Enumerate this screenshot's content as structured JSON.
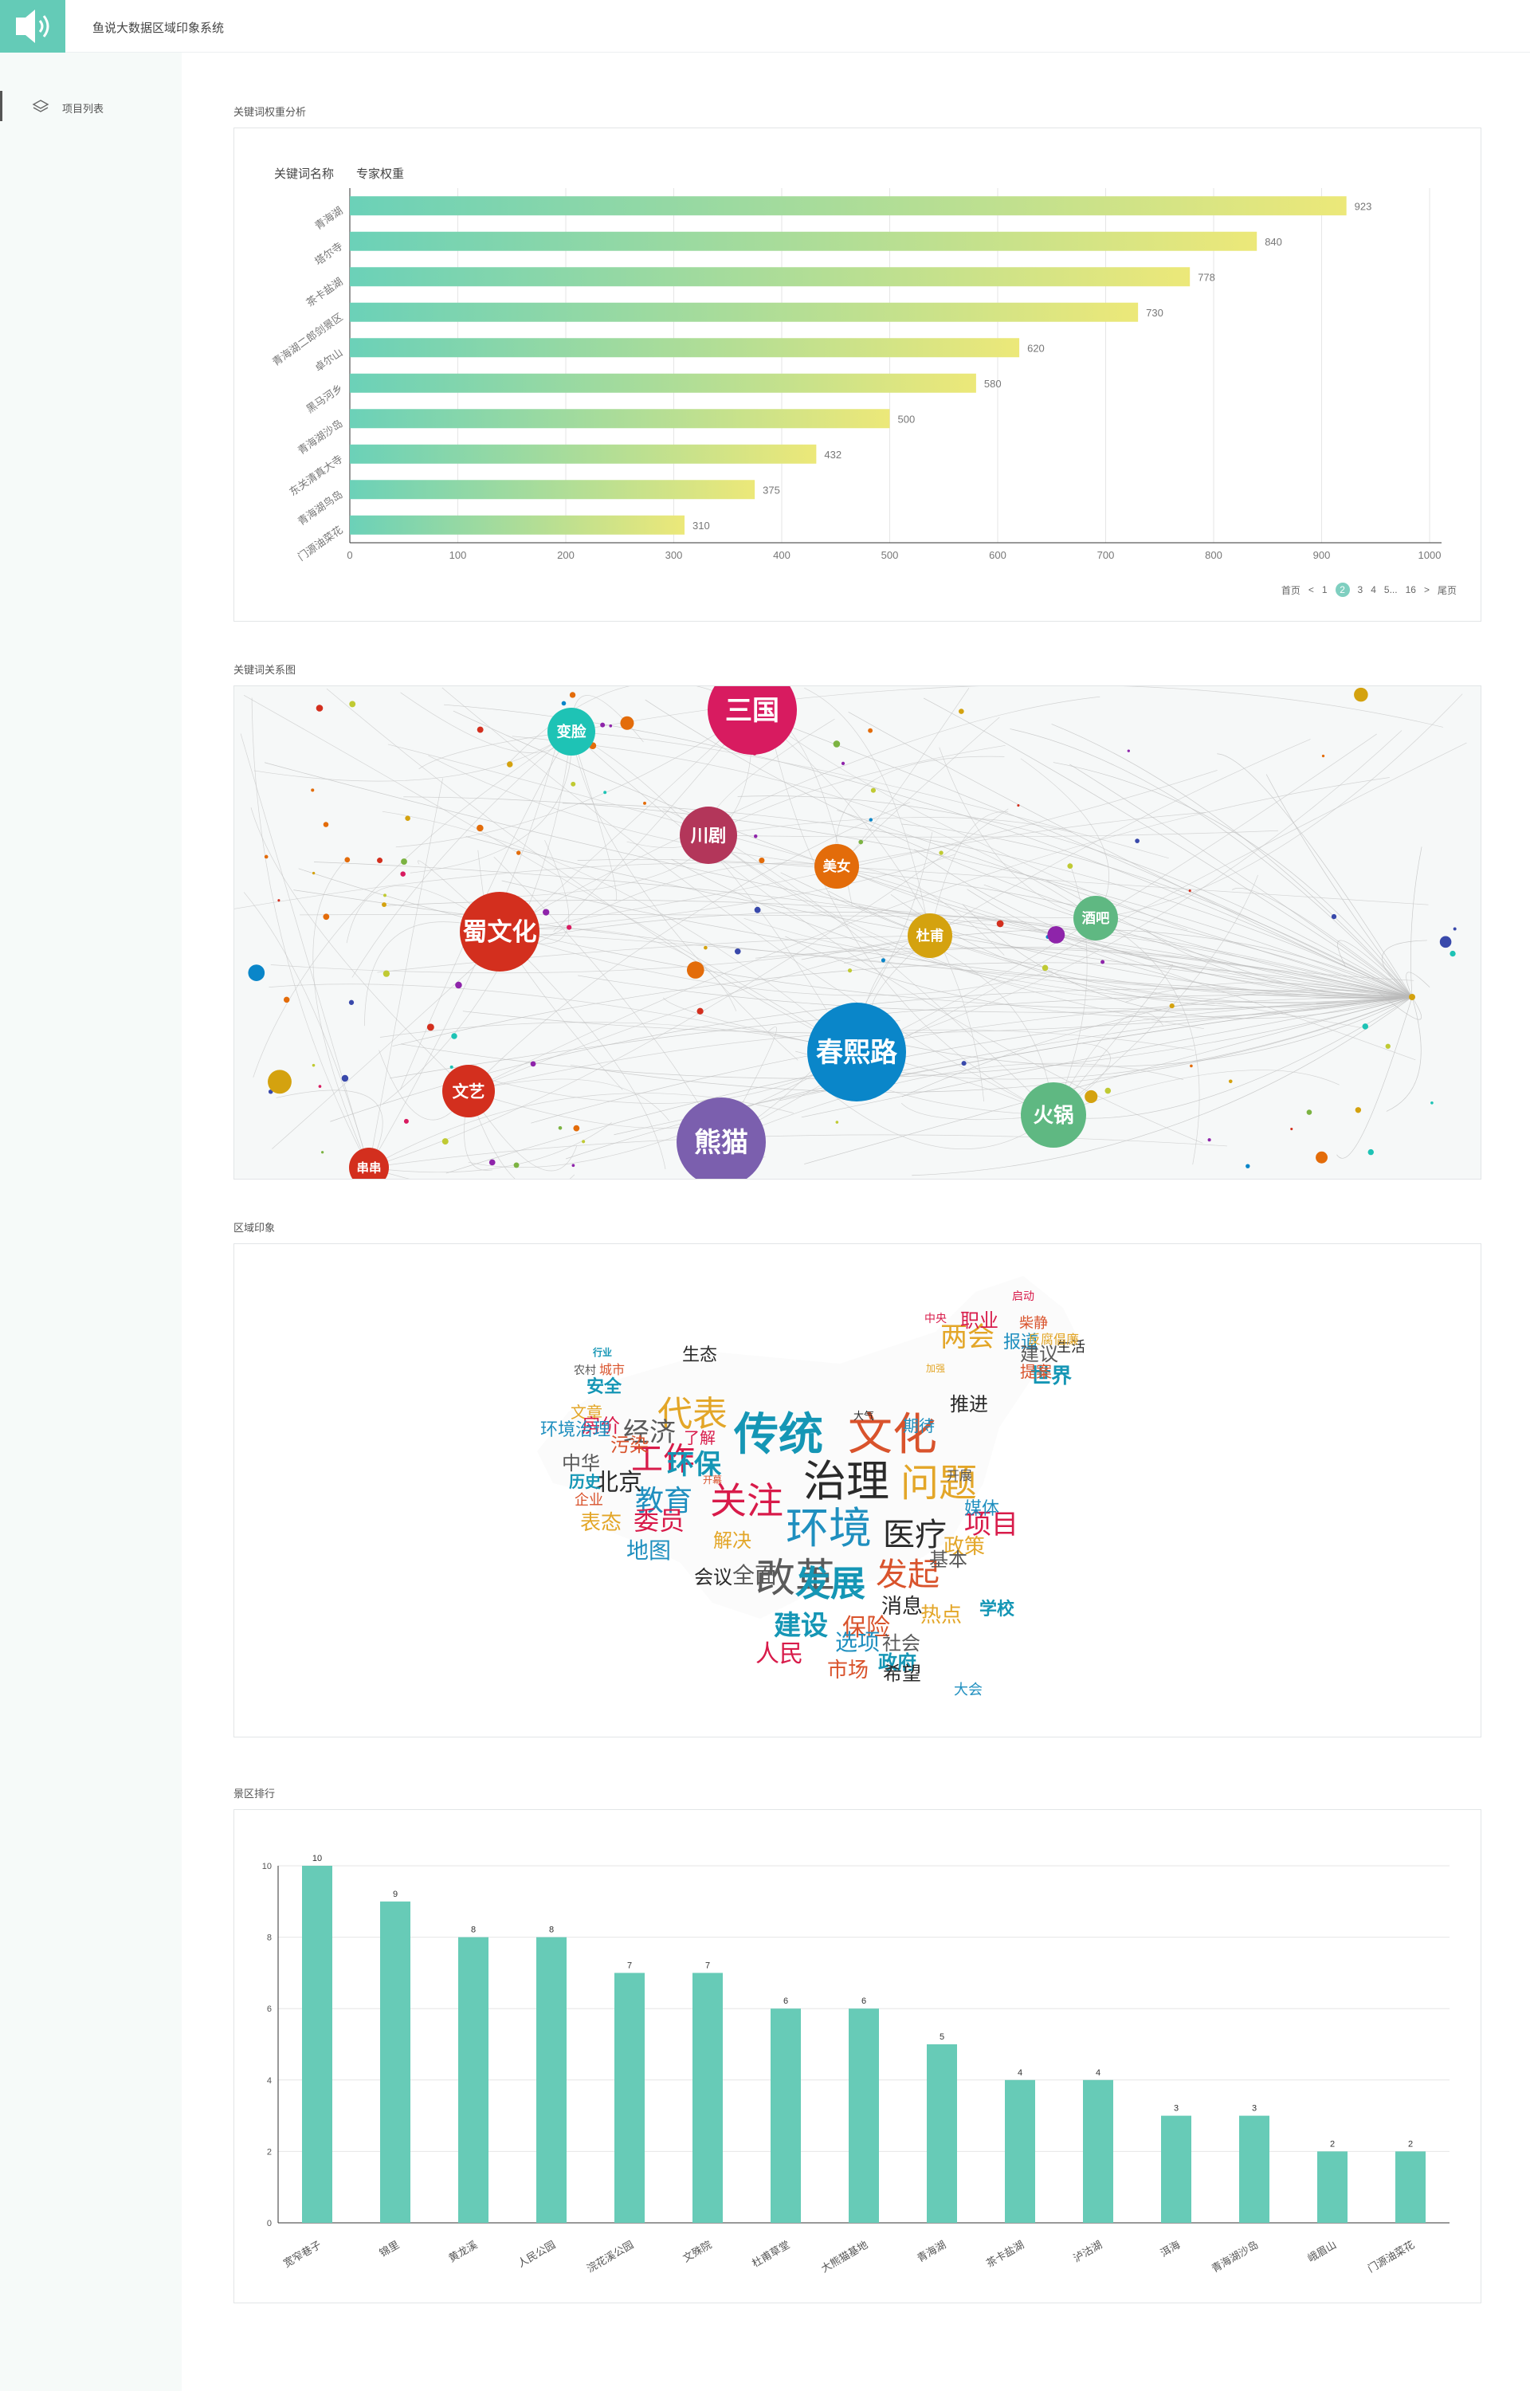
{
  "app": {
    "title": "鱼说大数据区域印象系统"
  },
  "sidebar": {
    "items": [
      {
        "label": "项目列表",
        "icon": "layers-icon"
      }
    ]
  },
  "sections": {
    "weights": "关键词权重分析",
    "graph": "关键词关系图",
    "impression": "区域印象",
    "ranking": "景区排行"
  },
  "weights_legend": {
    "name_label": "关键词名称",
    "weight_label": "专家权重"
  },
  "pagination": {
    "first": "首页",
    "prev": "<",
    "pages": [
      "1",
      "2",
      "3",
      "4",
      "5...",
      "16"
    ],
    "current": "2",
    "next": ">",
    "last": "尾页"
  },
  "colors": {
    "accent": "#64cbb7",
    "bar_start": "#6bd1b8",
    "bar_end": "#ece879"
  },
  "chart_data": [
    {
      "type": "bar",
      "orientation": "horizontal",
      "title": "",
      "categories": [
        "青海湖",
        "塔尔寺",
        "茶卡盐湖",
        "青海湖二郎剑景区",
        "卓尔山",
        "黑马河乡",
        "青海湖沙岛",
        "东关清真大寺",
        "青海湖鸟岛",
        "门源油菜花"
      ],
      "values": [
        923,
        840,
        778,
        730,
        620,
        580,
        500,
        432,
        375,
        310
      ],
      "xlim": [
        0,
        1000
      ],
      "xticks": [
        "0",
        "100",
        "200",
        "300",
        "400",
        "500",
        "600",
        "700",
        "800",
        "900",
        "1000"
      ],
      "grid": true
    },
    {
      "type": "bar",
      "title": "",
      "categories": [
        "宽窄巷子",
        "锦里",
        "黄龙溪",
        "人民公园",
        "浣花溪公园",
        "文殊院",
        "杜甫草堂",
        "大熊猫基地",
        "青海湖",
        "茶卡盐湖",
        "泸沽湖",
        "洱海",
        "青海湖沙岛",
        "峨眉山",
        "门源油菜花"
      ],
      "values": [
        10,
        9,
        8,
        8,
        7,
        7,
        6,
        6,
        5,
        4,
        4,
        3,
        3,
        2,
        2
      ],
      "ylim": [
        0,
        10
      ],
      "yticks": [
        "0",
        "2",
        "4",
        "6",
        "8",
        "10"
      ],
      "grid": true
    }
  ],
  "graph": {
    "nodes": [
      {
        "label": "三国",
        "color": "#d81b60"
      },
      {
        "label": "变脸",
        "color": "#1ec3b5"
      },
      {
        "label": "川剧",
        "color": "#b3365a"
      },
      {
        "label": "美女",
        "color": "#e36c0a"
      },
      {
        "label": "蜀文化",
        "color": "#d32f1e"
      },
      {
        "label": "杜甫",
        "color": "#d4a20f"
      },
      {
        "label": "酒吧",
        "color": "#5fb882"
      },
      {
        "label": "春熙路",
        "color": "#0a86c9"
      },
      {
        "label": "文艺",
        "color": "#d32f1e"
      },
      {
        "label": "熊猫",
        "color": "#7b5fae"
      },
      {
        "label": "火锅",
        "color": "#5fb882"
      },
      {
        "label": "串串",
        "color": "#d32f1e"
      }
    ]
  },
  "wordcloud": {
    "words": [
      "传统",
      "文化",
      "治理",
      "问题",
      "关注",
      "环境",
      "改革",
      "发展",
      "发起",
      "医疗",
      "代表",
      "工作",
      "教育",
      "经济",
      "环保",
      "污染",
      "北京",
      "表态",
      "委员",
      "地图",
      "全面",
      "建设",
      "保险",
      "消息",
      "热点",
      "人民",
      "选项",
      "社会",
      "政府",
      "市场",
      "希望",
      "两会",
      "职业",
      "报道",
      "建议",
      "世界",
      "提案",
      "推进",
      "政策",
      "项目",
      "媒体",
      "基本",
      "安全",
      "城市",
      "生态",
      "文章",
      "房价",
      "环境治理",
      "中华",
      "历史",
      "企业",
      "会议",
      "解决",
      "了解",
      "期待",
      "开展",
      "学校",
      "柴静",
      "生活",
      "反腐倡廉",
      "中央",
      "大会",
      "农村",
      "行业",
      "开幕",
      "大气",
      "加强",
      "启动"
    ]
  }
}
